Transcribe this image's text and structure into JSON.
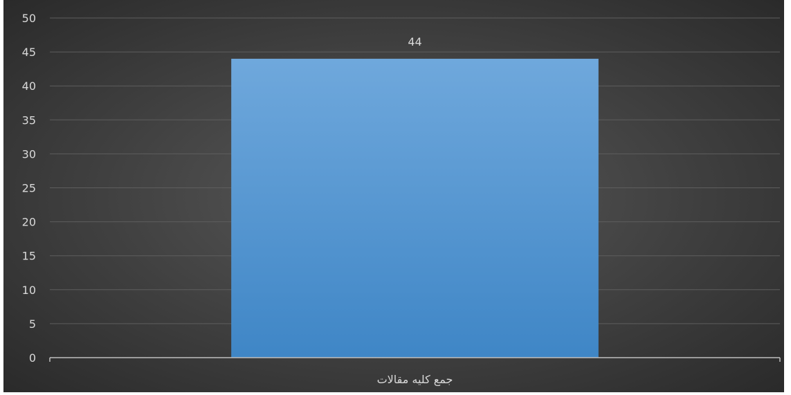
{
  "chart_data": {
    "type": "bar",
    "categories": [
      "جمع کلیه مقالات"
    ],
    "values": [
      44
    ],
    "data_labels": [
      "44"
    ],
    "ylim": [
      0,
      50
    ],
    "yticks": [
      0,
      5,
      10,
      15,
      20,
      25,
      30,
      35,
      40,
      45,
      50
    ],
    "grid": true,
    "legend": "none",
    "colors": {
      "bar_top": "#6fa8dc",
      "bar_bottom": "#3f86c6",
      "grid": "#5e5e5e",
      "axis": "#bfbfbf",
      "text": "#d9d9d9"
    }
  }
}
